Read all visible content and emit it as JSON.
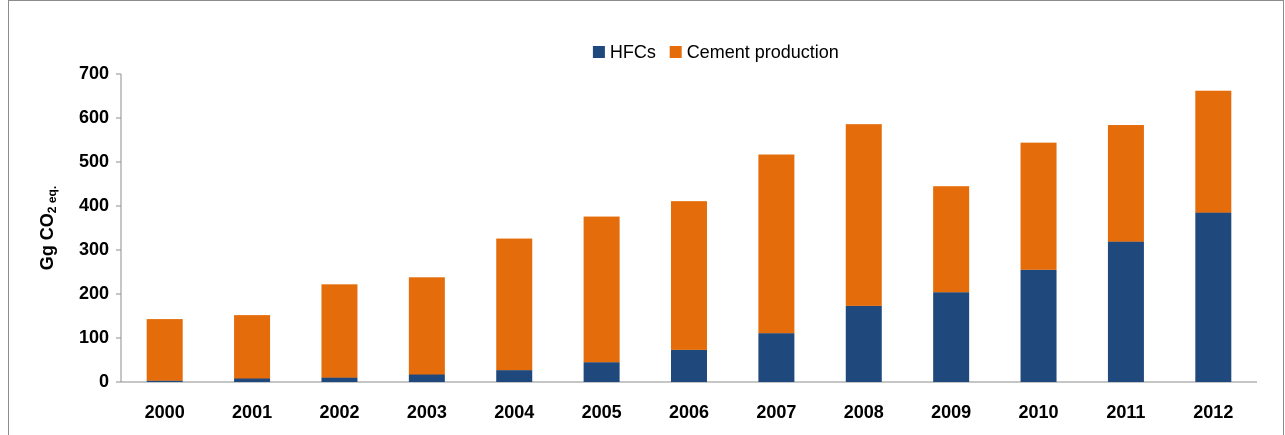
{
  "chart_data": {
    "type": "stacked-bar",
    "y_label": {
      "text": "Gg CO",
      "subscript": "2 eq."
    },
    "categories": [
      "2000",
      "2001",
      "2002",
      "2003",
      "2004",
      "2005",
      "2006",
      "2007",
      "2008",
      "2009",
      "2010",
      "2011",
      "2012"
    ],
    "series": [
      {
        "name": "HFCs",
        "color": "#1f497d",
        "values": [
          3,
          8,
          10,
          17,
          27,
          45,
          73,
          111,
          173,
          204,
          255,
          319,
          385
        ]
      },
      {
        "name": "Cement production",
        "color": "#e46c0a",
        "values": [
          140,
          144,
          212,
          221,
          299,
          331,
          338,
          406,
          413,
          241,
          289,
          265,
          277
        ]
      }
    ],
    "ylim": [
      0,
      700
    ],
    "yticks": [
      0,
      100,
      200,
      300,
      400,
      500,
      600,
      700
    ],
    "grid": false,
    "legend": "top"
  }
}
